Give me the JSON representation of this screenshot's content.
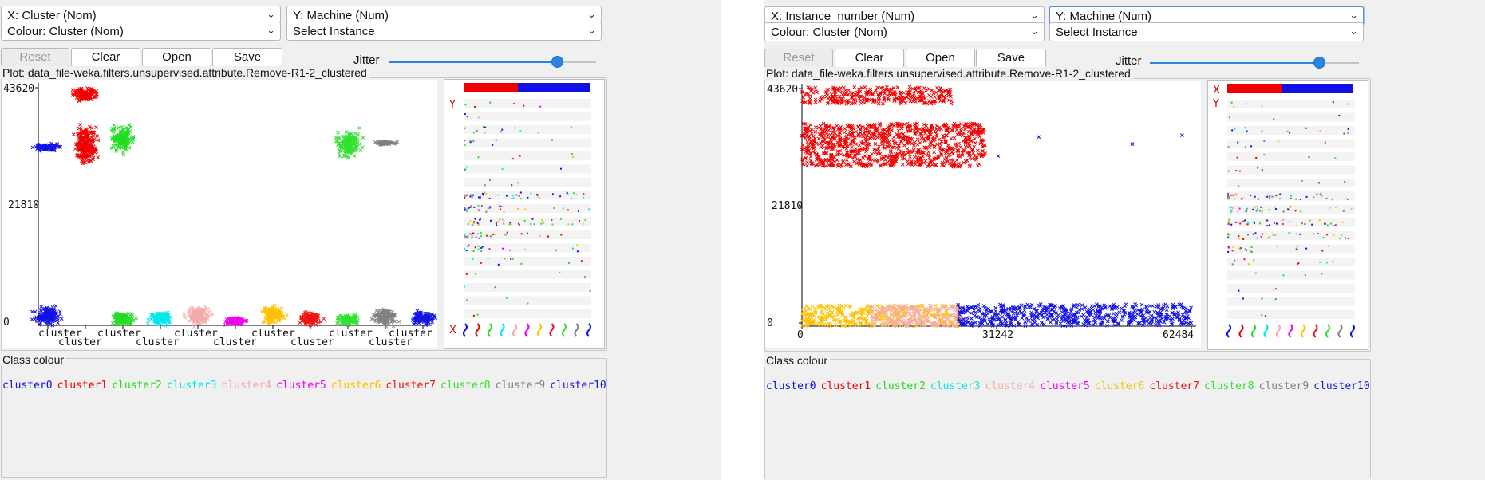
{
  "colors": {
    "cluster0": "#1010e6",
    "cluster1": "#ee0000",
    "cluster2": "#22dd22",
    "cluster3": "#00e8ec",
    "cluster4": "#f5aaaa",
    "cluster5": "#f000f0",
    "cluster6": "#ffc000",
    "cluster7": "#ee1515",
    "cluster8": "#33e033",
    "cluster9": "#808080",
    "cluster10": "#1515e0"
  },
  "left": {
    "x_select": "X: Cluster (Nom)",
    "y_select": "Y: Machine (Num)",
    "colour_select": "Colour: Cluster (Nom)",
    "instance_select": "Select Instance",
    "buttons": {
      "reset": "Reset",
      "clear": "Clear",
      "open": "Open",
      "save": "Save"
    },
    "jitter_label": "Jitter",
    "jitter_value": 0.81,
    "plot_title": "Plot: data_file-weka.filters.unsupervised.attribute.Remove-R1-2_clustered",
    "y_ticks": [
      "43620",
      "21810",
      "0"
    ],
    "x_ticks_upper": [
      "cluster",
      "cluster",
      "cluster",
      "cluster",
      "cluster",
      "cluster"
    ],
    "x_ticks_lower": [
      "cluster",
      "cluster",
      "cluster",
      "cluster",
      "cluster"
    ],
    "attr_x_marker": "X",
    "attr_y_marker": "Y",
    "class_colour_title": "Class colour",
    "legend": [
      "cluster0",
      "cluster1",
      "cluster2",
      "cluster3",
      "cluster4",
      "cluster5",
      "cluster6",
      "cluster7",
      "cluster8",
      "cluster9",
      "cluster10"
    ]
  },
  "right": {
    "x_select": "X: Instance_number (Num)",
    "y_select": "Y: Machine (Num)",
    "colour_select": "Colour: Cluster (Nom)",
    "instance_select": "Select Instance",
    "buttons": {
      "reset": "Reset",
      "clear": "Clear",
      "open": "Open",
      "save": "Save"
    },
    "jitter_label": "Jitter",
    "jitter_value": 0.81,
    "plot_title": "Plot: data_file-weka.filters.unsupervised.attribute.Remove-R1-2_clustered",
    "y_ticks": [
      "43620",
      "21810",
      "0"
    ],
    "x_ticks": [
      "0",
      "31242",
      "62484"
    ],
    "attr_x_marker": "X",
    "attr_y_marker": "Y",
    "class_colour_title": "Class colour",
    "legend": [
      "cluster0",
      "cluster1",
      "cluster2",
      "cluster3",
      "cluster4",
      "cluster5",
      "cluster6",
      "cluster7",
      "cluster8",
      "cluster9",
      "cluster10"
    ]
  },
  "chart_data": [
    {
      "type": "scatter",
      "title": "",
      "x_attribute": "Cluster (Nom)",
      "y_attribute": "Machine (Num)",
      "y_range": [
        0,
        43620
      ],
      "clusters": [
        {
          "name": "cluster0",
          "y_ranges": [
            [
              0,
              3500
            ],
            [
              32000,
              33000
            ]
          ]
        },
        {
          "name": "cluster1",
          "y_ranges": [
            [
              29000,
              37000
            ],
            [
              40500,
              43620
            ]
          ]
        },
        {
          "name": "cluster2",
          "y_ranges": [
            [
              0,
              2500
            ],
            [
              31500,
              36500
            ]
          ]
        },
        {
          "name": "cluster3",
          "y_ranges": [
            [
              0,
              2500
            ]
          ]
        },
        {
          "name": "cluster4",
          "y_ranges": [
            [
              0,
              3500
            ]
          ]
        },
        {
          "name": "cluster5",
          "y_ranges": [
            [
              0,
              1500
            ]
          ]
        },
        {
          "name": "cluster6",
          "y_ranges": [
            [
              0,
              3600
            ]
          ]
        },
        {
          "name": "cluster7",
          "y_ranges": [
            [
              0,
              2500
            ]
          ]
        },
        {
          "name": "cluster8",
          "y_ranges": [
            [
              0,
              2000
            ],
            [
              30500,
              35500
            ]
          ]
        },
        {
          "name": "cluster9",
          "y_ranges": [
            [
              0,
              3000
            ],
            [
              33000,
              33500
            ]
          ]
        },
        {
          "name": "cluster10",
          "y_ranges": [
            [
              0,
              2500
            ]
          ]
        }
      ]
    },
    {
      "type": "scatter",
      "title": "",
      "x_attribute": "Instance_number (Num)",
      "y_attribute": "Machine (Num)",
      "x_range": [
        0,
        62484
      ],
      "y_range": [
        0,
        43620
      ],
      "bands": [
        {
          "series": "cluster1",
          "x": [
            0,
            29500
          ],
          "y": [
            29000,
            37000
          ]
        },
        {
          "series": "cluster1",
          "x": [
            0,
            24000
          ],
          "y": [
            40500,
            43620
          ]
        },
        {
          "series": "cluster6",
          "x": [
            0,
            25500
          ],
          "y": [
            0,
            3800
          ]
        },
        {
          "series": "cluster4",
          "x": [
            11000,
            25500
          ],
          "y": [
            0,
            3800
          ]
        },
        {
          "series": "cluster0",
          "x": [
            25000,
            62484
          ],
          "y": [
            0,
            4000
          ]
        }
      ],
      "outliers": [
        {
          "series": "cluster0",
          "x": 38000,
          "y": 34500
        },
        {
          "series": "cluster0",
          "x": 53000,
          "y": 33200
        },
        {
          "series": "cluster0",
          "x": 61000,
          "y": 34800
        },
        {
          "series": "cluster0",
          "x": 31500,
          "y": 31000
        }
      ]
    }
  ]
}
